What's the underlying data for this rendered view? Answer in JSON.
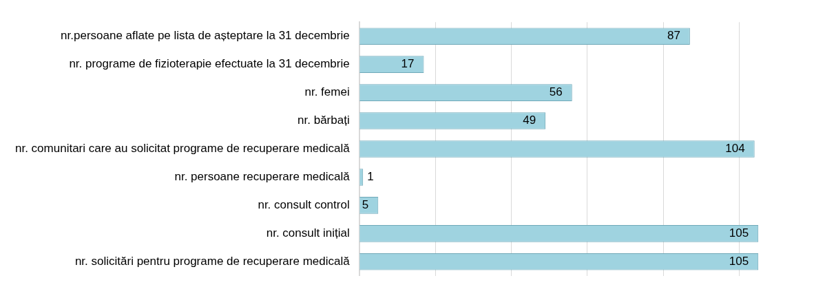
{
  "chart_data": {
    "type": "bar",
    "orientation": "horizontal",
    "categories": [
      "nr.persoane aflate pe lista de așteptare la 31 decembrie",
      "nr. programe de fizioterapie efectuate la 31 decembrie",
      "nr. femei",
      "nr. bărbați",
      "nr. comunitari care au solicitat programe de recuperare medicală",
      "nr. persoane recuperare medicală",
      "nr. consult control",
      "nr. consult inițial",
      "nr. solicitări pentru programe de recuperare medicală"
    ],
    "values": [
      87,
      17,
      56,
      49,
      104,
      1,
      5,
      105,
      105
    ],
    "color": "#9fd3e0",
    "xticks": [
      {
        "value": 0,
        "label": null
      },
      {
        "value": 20,
        "label": null
      },
      {
        "value": 40,
        "label": null
      },
      {
        "value": 60,
        "label": null
      },
      {
        "value": 80,
        "label": null
      },
      {
        "value": 100,
        "label": null
      }
    ],
    "grid": "x",
    "data_labels": true
  }
}
